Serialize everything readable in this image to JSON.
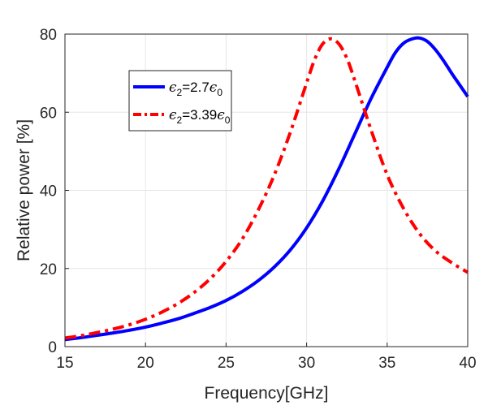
{
  "chart_data": {
    "type": "line",
    "title": "",
    "xlabel": "Frequency[GHz]",
    "ylabel": "Relative power [%]",
    "xlim": [
      15,
      40
    ],
    "ylim": [
      0,
      80
    ],
    "xticks": [
      15,
      20,
      25,
      30,
      35,
      40
    ],
    "yticks": [
      0,
      20,
      40,
      60,
      80
    ],
    "grid": true,
    "legend_position": "top-left",
    "series": [
      {
        "name": "ε2=2.7ε0",
        "legend": {
          "eps": "ϵ",
          "sub1": "2",
          "mid": "=2.7",
          "sub2": "0"
        },
        "color": "#0000ff",
        "style": "solid",
        "x": [
          15,
          16,
          17,
          18,
          19,
          20,
          21,
          22,
          23,
          24,
          25,
          26,
          27,
          28,
          29,
          30,
          31,
          32,
          33,
          34,
          35,
          35.5,
          36,
          36.5,
          37,
          37.5,
          38,
          38.5,
          39,
          39.5,
          40
        ],
        "y": [
          1.8,
          2.3,
          2.9,
          3.5,
          4.2,
          5.0,
          6.0,
          7.1,
          8.5,
          10.0,
          11.8,
          14.1,
          16.9,
          20.4,
          24.8,
          30.4,
          37.3,
          45.5,
          54.5,
          63.5,
          71.5,
          75.2,
          77.6,
          78.7,
          79.0,
          78.1,
          76.0,
          73.2,
          70.0,
          67.0,
          64.0
        ]
      },
      {
        "name": "ε2=3.39ε0",
        "legend": {
          "eps": "ϵ",
          "sub1": "2",
          "mid": "=3.39",
          "sub2": "0"
        },
        "color": "#ff0000",
        "style": "dash-dot",
        "x": [
          15,
          16,
          17,
          18,
          19,
          20,
          21,
          22,
          23,
          24,
          25,
          26,
          27,
          28,
          29,
          30,
          30.5,
          31,
          31.5,
          32,
          32.5,
          33,
          34,
          35,
          36,
          37,
          38,
          39,
          40
        ],
        "y": [
          2.2,
          2.8,
          3.6,
          4.5,
          5.6,
          7.0,
          8.8,
          11.0,
          13.8,
          17.3,
          21.8,
          27.5,
          35.0,
          44.0,
          55.0,
          67.5,
          73.5,
          77.5,
          78.8,
          77.5,
          73.8,
          68.0,
          55.5,
          44.0,
          35.5,
          29.0,
          24.5,
          21.5,
          19.0
        ]
      }
    ]
  }
}
